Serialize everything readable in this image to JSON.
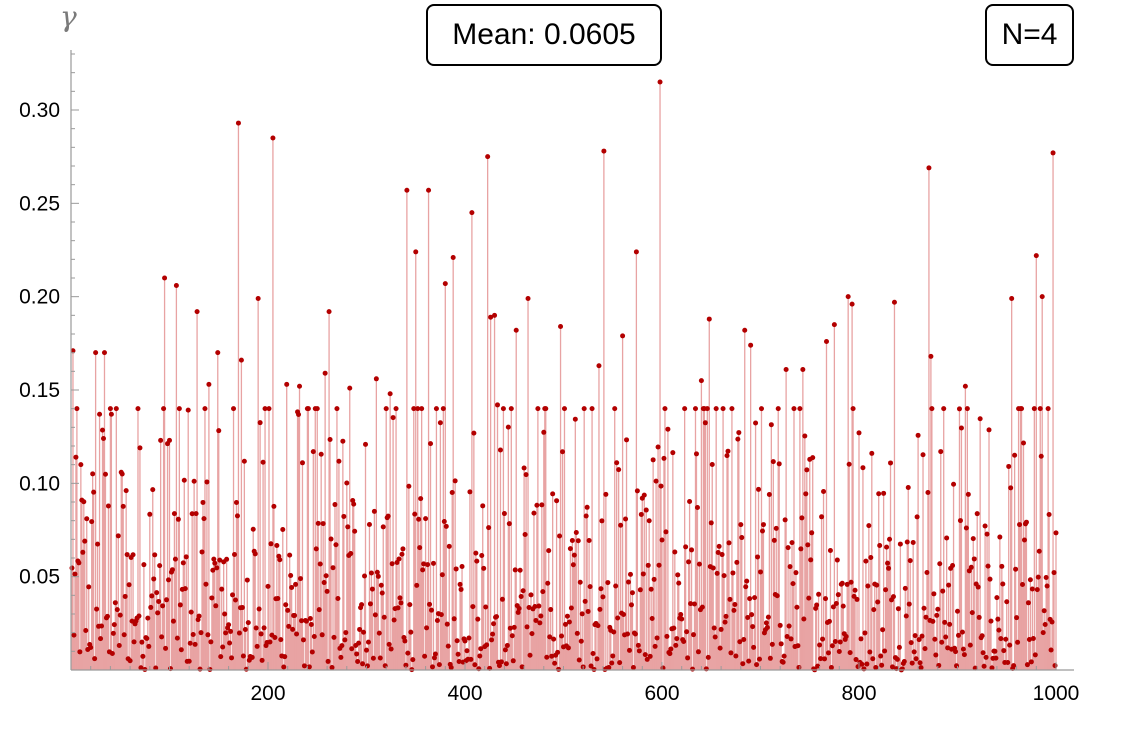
{
  "chart_data": {
    "type": "bar",
    "ylabel": "γ",
    "xlim": [
      0,
      1000
    ],
    "ylim": [
      0,
      0.33
    ],
    "xticks": [
      "200",
      "400",
      "600",
      "800",
      "1000"
    ],
    "yticks": [
      "0.05",
      "0.10",
      "0.15",
      "0.20",
      "0.25",
      "0.30"
    ],
    "mean_label": "Mean: 0.0605",
    "n_label": "N=4",
    "colors": {
      "stem": "#e8a3a3",
      "fill": "#d46464",
      "point": "#b30000"
    },
    "sample_count": 1000,
    "mean": 0.0605,
    "highlights": [
      {
        "x": 2,
        "y": 0.171
      },
      {
        "x": 5,
        "y": 0.114
      },
      {
        "x": 11,
        "y": 0.091
      },
      {
        "x": 25,
        "y": 0.17
      },
      {
        "x": 29,
        "y": 0.137
      },
      {
        "x": 33,
        "y": 0.124
      },
      {
        "x": 34,
        "y": 0.17
      },
      {
        "x": 40,
        "y": 0.14
      },
      {
        "x": 41,
        "y": 0.137
      },
      {
        "x": 52,
        "y": 0.105
      },
      {
        "x": 70,
        "y": 0.119
      },
      {
        "x": 91,
        "y": 0.123
      },
      {
        "x": 95,
        "y": 0.21
      },
      {
        "x": 100,
        "y": 0.123
      },
      {
        "x": 107,
        "y": 0.206
      },
      {
        "x": 128,
        "y": 0.192
      },
      {
        "x": 140,
        "y": 0.153
      },
      {
        "x": 149,
        "y": 0.17
      },
      {
        "x": 170,
        "y": 0.293
      },
      {
        "x": 173,
        "y": 0.166
      },
      {
        "x": 190,
        "y": 0.199
      },
      {
        "x": 205,
        "y": 0.285
      },
      {
        "x": 219,
        "y": 0.153
      },
      {
        "x": 232,
        "y": 0.152
      },
      {
        "x": 258,
        "y": 0.159
      },
      {
        "x": 262,
        "y": 0.192
      },
      {
        "x": 283,
        "y": 0.151
      },
      {
        "x": 310,
        "y": 0.156
      },
      {
        "x": 324,
        "y": 0.148
      },
      {
        "x": 341,
        "y": 0.257
      },
      {
        "x": 350,
        "y": 0.224
      },
      {
        "x": 363,
        "y": 0.257
      },
      {
        "x": 380,
        "y": 0.207
      },
      {
        "x": 388,
        "y": 0.221
      },
      {
        "x": 407,
        "y": 0.245
      },
      {
        "x": 423,
        "y": 0.275
      },
      {
        "x": 426,
        "y": 0.189
      },
      {
        "x": 430,
        "y": 0.19
      },
      {
        "x": 433,
        "y": 0.142
      },
      {
        "x": 452,
        "y": 0.182
      },
      {
        "x": 464,
        "y": 0.199
      },
      {
        "x": 497,
        "y": 0.184
      },
      {
        "x": 536,
        "y": 0.163
      },
      {
        "x": 541,
        "y": 0.278
      },
      {
        "x": 560,
        "y": 0.179
      },
      {
        "x": 574,
        "y": 0.224
      },
      {
        "x": 598,
        "y": 0.315
      },
      {
        "x": 606,
        "y": 0.129
      },
      {
        "x": 640,
        "y": 0.155
      },
      {
        "x": 648,
        "y": 0.188
      },
      {
        "x": 684,
        "y": 0.182
      },
      {
        "x": 690,
        "y": 0.174
      },
      {
        "x": 726,
        "y": 0.161
      },
      {
        "x": 743,
        "y": 0.161
      },
      {
        "x": 767,
        "y": 0.176
      },
      {
        "x": 775,
        "y": 0.185
      },
      {
        "x": 789,
        "y": 0.2
      },
      {
        "x": 793,
        "y": 0.196
      },
      {
        "x": 836,
        "y": 0.197
      },
      {
        "x": 871,
        "y": 0.269
      },
      {
        "x": 873,
        "y": 0.168
      },
      {
        "x": 908,
        "y": 0.152
      },
      {
        "x": 955,
        "y": 0.199
      },
      {
        "x": 980,
        "y": 0.222
      },
      {
        "x": 986,
        "y": 0.2
      },
      {
        "x": 997,
        "y": 0.277
      }
    ]
  }
}
